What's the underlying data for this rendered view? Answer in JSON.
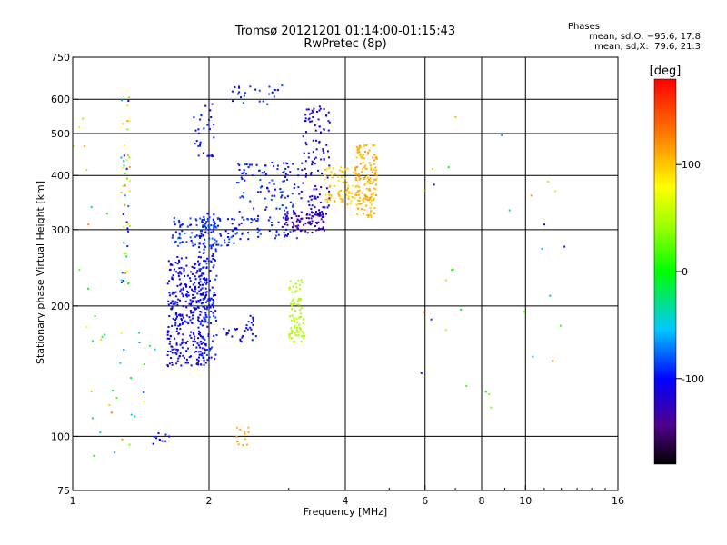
{
  "header": {
    "title": "Tromsø 20121201 01:14:00-01:15:43",
    "subtitle": "RwPretec (8p)"
  },
  "phases_box": {
    "heading": "Phases",
    "line_o": "mean, sd,O: −95.6, 17.8",
    "line_x": "mean, sd,X:  79.6, 21.3"
  },
  "colorbar": {
    "unit": "[deg]",
    "ticks": [
      {
        "value": 100,
        "label": "100"
      },
      {
        "value": 0,
        "label": "0"
      },
      {
        "value": -100,
        "label": "-100"
      }
    ],
    "range": [
      -180,
      180
    ]
  },
  "chart_data": {
    "type": "scatter",
    "xlabel": "Frequency [MHz]",
    "ylabel": "Stationary phase Virtual Height [km]",
    "xscale": "log",
    "yscale": "log",
    "xlim": [
      1,
      16
    ],
    "ylim": [
      75,
      750
    ],
    "grid": true,
    "x_gridlines": [
      2,
      4,
      6,
      8,
      10
    ],
    "y_gridlines": [
      100,
      200,
      300,
      400,
      500,
      600
    ],
    "x_ticks": [
      {
        "v": 1,
        "label": "1"
      },
      {
        "v": 2,
        "label": "2"
      },
      {
        "v": 4,
        "label": "4"
      },
      {
        "v": 6,
        "label": "6"
      },
      {
        "v": 8,
        "label": "8"
      },
      {
        "v": 10,
        "label": "10"
      },
      {
        "v": 16,
        "label": "16"
      }
    ],
    "y_ticks": [
      {
        "v": 75,
        "label": "75"
      },
      {
        "v": 100,
        "label": "100"
      },
      {
        "v": 200,
        "label": "200"
      },
      {
        "v": 300,
        "label": "300"
      },
      {
        "v": 400,
        "label": "400"
      },
      {
        "v": 500,
        "label": "500"
      },
      {
        "v": 600,
        "label": "600"
      },
      {
        "v": 750,
        "label": "750"
      }
    ],
    "clusters": [
      {
        "f": [
          1.62,
          1.98
        ],
        "h": [
          145,
          260
        ],
        "phase": [
          -120,
          -95
        ],
        "n": 340
      },
      {
        "f": [
          1.9,
          2.08
        ],
        "h": [
          150,
          330
        ],
        "phase": [
          -115,
          -80
        ],
        "n": 160
      },
      {
        "f": [
          1.65,
          2.3
        ],
        "h": [
          275,
          320
        ],
        "phase": [
          -105,
          -75
        ],
        "n": 110
      },
      {
        "f": [
          2.15,
          2.55
        ],
        "h": [
          165,
          190
        ],
        "phase": [
          -110,
          -90
        ],
        "n": 30
      },
      {
        "f": [
          2.3,
          3.2
        ],
        "h": [
          285,
          430
        ],
        "phase": [
          -115,
          -80
        ],
        "n": 150
      },
      {
        "f": [
          2.9,
          3.6
        ],
        "h": [
          295,
          330
        ],
        "phase": [
          -140,
          -120
        ],
        "n": 90
      },
      {
        "f": [
          3.2,
          3.7
        ],
        "h": [
          320,
          580
        ],
        "phase": [
          -130,
          -95
        ],
        "n": 110
      },
      {
        "f": [
          3.6,
          4.2
        ],
        "h": [
          340,
          420
        ],
        "phase": [
          85,
          110
        ],
        "n": 70
      },
      {
        "f": [
          4.2,
          4.7
        ],
        "h": [
          320,
          470
        ],
        "phase": [
          95,
          120
        ],
        "n": 160
      },
      {
        "f": [
          3.0,
          3.25
        ],
        "h": [
          165,
          230
        ],
        "phase": [
          40,
          60
        ],
        "n": 80
      },
      {
        "f": [
          1.28,
          1.34
        ],
        "h": [
          220,
          640
        ],
        "phase": [
          -130,
          130
        ],
        "n": 50
      },
      {
        "f": [
          1.85,
          2.05
        ],
        "h": [
          440,
          600
        ],
        "phase": [
          -110,
          -90
        ],
        "n": 30
      },
      {
        "f": [
          2.25,
          2.9
        ],
        "h": [
          580,
          650
        ],
        "phase": [
          -110,
          -80
        ],
        "n": 25
      },
      {
        "f": [
          2.3,
          2.45
        ],
        "h": [
          95,
          105
        ],
        "phase": [
          100,
          120
        ],
        "n": 12
      },
      {
        "f": [
          1.5,
          1.65
        ],
        "h": [
          96,
          102
        ],
        "phase": [
          -110,
          -90
        ],
        "n": 10
      },
      {
        "f": [
          1.1,
          1.6
        ],
        "h": [
          90,
          180
        ],
        "phase": [
          -100,
          140
        ],
        "n": 25
      },
      {
        "f": [
          5.8,
          12.5
        ],
        "h": [
          110,
          560
        ],
        "phase": [
          -120,
          140
        ],
        "n": 30
      },
      {
        "f": [
          1.0,
          1.2
        ],
        "h": [
          150,
          560
        ],
        "phase": [
          -40,
          140
        ],
        "n": 15
      }
    ]
  }
}
